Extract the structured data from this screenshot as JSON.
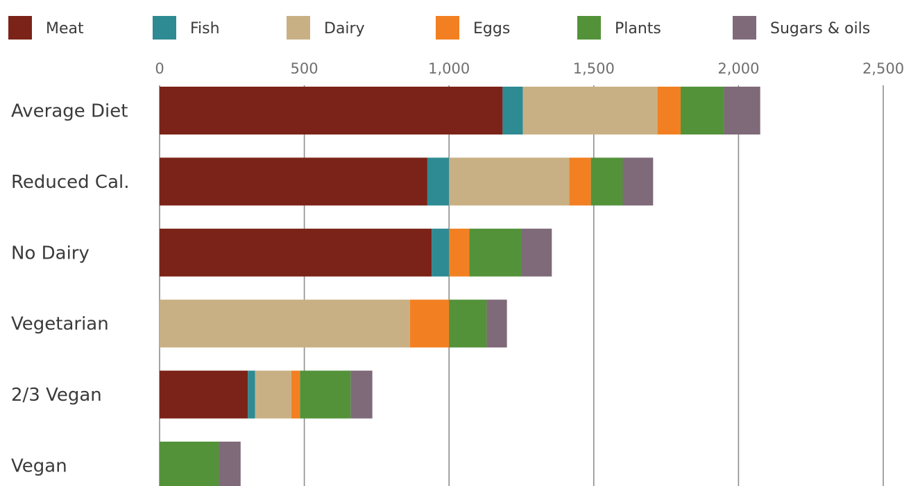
{
  "chart_data": {
    "type": "bar",
    "orientation": "horizontal",
    "stacked": true,
    "title": "",
    "xlabel": "",
    "ylabel": "",
    "xlim": [
      0,
      2500
    ],
    "x_ticks": [
      0,
      500,
      1000,
      1500,
      2000,
      2500
    ],
    "x_tick_labels": [
      "0",
      "500",
      "1,000",
      "1,500",
      "2,000",
      "2,500"
    ],
    "grid": "vertical",
    "legend_position": "top",
    "categories": [
      "Average Diet",
      "Reduced Cal.",
      "No Dairy",
      "Vegetarian",
      "2/3 Vegan",
      "Vegan"
    ],
    "series": [
      {
        "name": "Meat",
        "color": "#7b2318",
        "values": [
          1185,
          925,
          940,
          0,
          305,
          0
        ]
      },
      {
        "name": "Fish",
        "color": "#2e8a93",
        "values": [
          70,
          75,
          60,
          0,
          25,
          0
        ]
      },
      {
        "name": "Dairy",
        "color": "#c9b084",
        "values": [
          465,
          415,
          0,
          865,
          125,
          0
        ]
      },
      {
        "name": "Eggs",
        "color": "#f28022",
        "values": [
          80,
          75,
          70,
          135,
          30,
          0
        ]
      },
      {
        "name": "Plants",
        "color": "#54923a",
        "values": [
          150,
          110,
          180,
          130,
          175,
          205
        ]
      },
      {
        "name": "Sugars & oils",
        "color": "#7f6a79",
        "values": [
          125,
          105,
          105,
          70,
          75,
          75
        ]
      }
    ]
  }
}
